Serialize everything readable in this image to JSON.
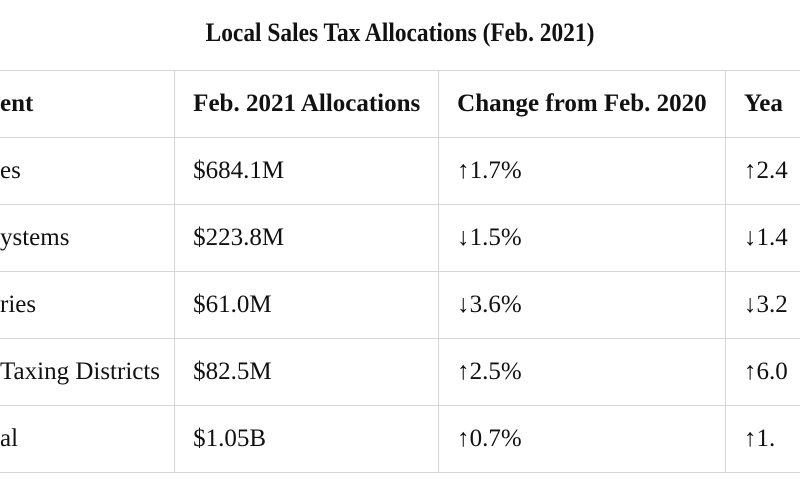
{
  "title": "Local Sales Tax Allocations (Feb. 2021)",
  "table": {
    "header": [
      "ent",
      "Feb. 2021 Allocations",
      "Change from Feb. 2020",
      "Yea"
    ],
    "rows": [
      [
        "es",
        "$684.1M",
        "↑1.7%",
        "↑2.4"
      ],
      [
        "ystems",
        "$223.8M",
        "↓1.5%",
        "↓1.4"
      ],
      [
        "ries",
        "$61.0M",
        "↓3.6%",
        "↓3.2"
      ],
      [
        "Taxing Districts",
        "$82.5M",
        "↑2.5%",
        "↑6.0"
      ],
      [
        "al",
        "$1.05B",
        "↑0.7%",
        "↑1."
      ]
    ]
  }
}
